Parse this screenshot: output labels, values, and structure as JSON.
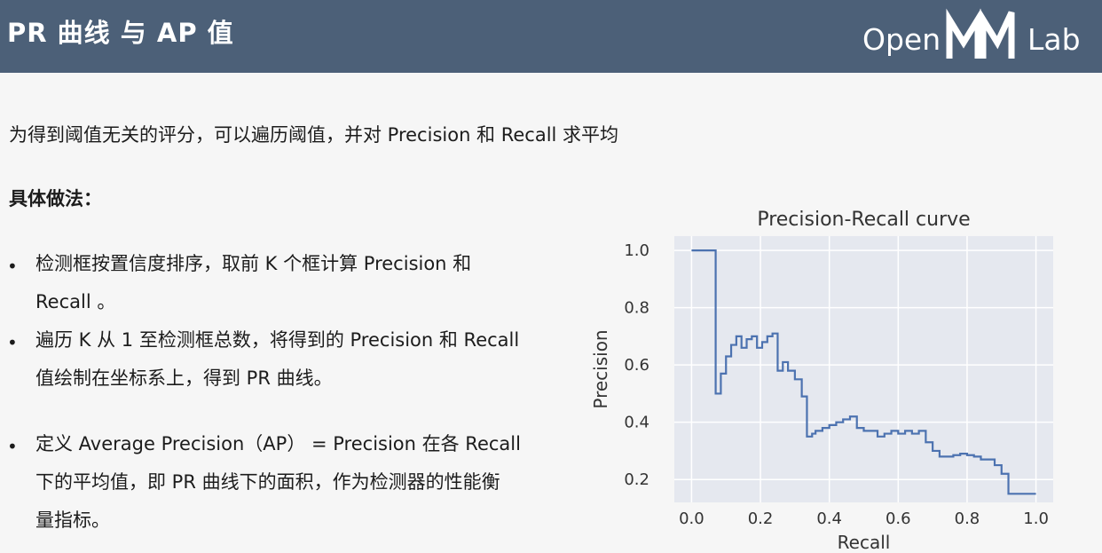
{
  "slide": {
    "title": "PR 曲线 与 AP 值",
    "logo": {
      "left": "Open",
      "right": "Lab",
      "mark": "MM"
    }
  },
  "content": {
    "intro": "为得到阈值无关的评分，可以遍历阈值，并对 Precision 和 Recall 求平均",
    "method_heading": "具体做法：",
    "bullets": [
      {
        "lines": [
          "检测框按置信度排序，取前 K 个框计算 Precision 和",
          "Recall 。"
        ]
      },
      {
        "lines": [
          "遍历 K 从 1 至检测框总数，将得到的 Precision 和 Recall",
          "值绘制在坐标系上，得到 PR 曲线。"
        ]
      },
      {
        "lines": [
          "定义 Average Precision（AP） = Precision 在各 Recall",
          "下的平均值，即 PR 曲线下的面积，作为检测器的性能衡",
          "量指标。"
        ]
      }
    ]
  },
  "colors": {
    "header_bg": "#4c6078",
    "plot_bg": "#e5e8ef",
    "line": "#4c72b0"
  },
  "chart_data": {
    "type": "line",
    "step": "post",
    "title": "Precision-Recall curve",
    "xlabel": "Recall",
    "ylabel": "Precision",
    "xlim": [
      -0.05,
      1.05
    ],
    "ylim": [
      0.12,
      1.05
    ],
    "xticks": [
      "0.0",
      "0.2",
      "0.4",
      "0.6",
      "0.8",
      "1.0"
    ],
    "yticks": [
      "0.2",
      "0.4",
      "0.6",
      "0.8",
      "1.0"
    ],
    "grid": true,
    "x": [
      0.0,
      0.07,
      0.07,
      0.085,
      0.1,
      0.115,
      0.13,
      0.145,
      0.16,
      0.175,
      0.19,
      0.205,
      0.22,
      0.235,
      0.25,
      0.265,
      0.28,
      0.3,
      0.32,
      0.335,
      0.35,
      0.36,
      0.38,
      0.4,
      0.42,
      0.44,
      0.46,
      0.48,
      0.5,
      0.52,
      0.54,
      0.56,
      0.58,
      0.6,
      0.62,
      0.64,
      0.66,
      0.68,
      0.7,
      0.72,
      0.74,
      0.76,
      0.78,
      0.8,
      0.82,
      0.84,
      0.86,
      0.88,
      0.9,
      0.92,
      0.94,
      0.96,
      0.98,
      1.0
    ],
    "y": [
      1.0,
      1.0,
      0.5,
      0.57,
      0.63,
      0.67,
      0.7,
      0.66,
      0.69,
      0.7,
      0.66,
      0.68,
      0.7,
      0.71,
      0.58,
      0.61,
      0.58,
      0.55,
      0.49,
      0.35,
      0.36,
      0.37,
      0.38,
      0.39,
      0.4,
      0.41,
      0.42,
      0.38,
      0.37,
      0.37,
      0.35,
      0.36,
      0.37,
      0.36,
      0.37,
      0.36,
      0.37,
      0.33,
      0.3,
      0.28,
      0.28,
      0.285,
      0.29,
      0.285,
      0.28,
      0.27,
      0.27,
      0.25,
      0.22,
      0.15,
      0.15,
      0.15,
      0.15,
      0.15
    ]
  }
}
